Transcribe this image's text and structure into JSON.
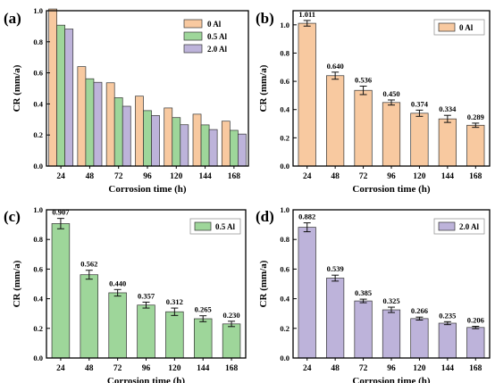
{
  "chart_data": [
    {
      "panel": "(a)",
      "type": "bar",
      "categories": [
        "24",
        "48",
        "72",
        "96",
        "120",
        "144",
        "168"
      ],
      "series": [
        {
          "name": "0 Al",
          "color": "#f8c9a0",
          "values": [
            1.011,
            0.64,
            0.536,
            0.45,
            0.374,
            0.334,
            0.289
          ]
        },
        {
          "name": "0.5 Al",
          "color": "#9ed69a",
          "values": [
            0.907,
            0.562,
            0.44,
            0.357,
            0.312,
            0.265,
            0.23
          ]
        },
        {
          "name": "2.0 Al",
          "color": "#bdb3da",
          "values": [
            0.882,
            0.539,
            0.385,
            0.325,
            0.266,
            0.235,
            0.206
          ]
        }
      ],
      "xlabel": "Corrosion time (h)",
      "ylabel": "CR (mm/a)",
      "ylim": [
        0,
        1.0
      ],
      "yticks": [
        "0.0",
        "0.2",
        "0.4",
        "0.6",
        "0.8",
        "1.0"
      ],
      "legend": "top-right"
    },
    {
      "panel": "(b)",
      "type": "bar",
      "categories": [
        "24",
        "48",
        "72",
        "96",
        "120",
        "144",
        "168"
      ],
      "series": [
        {
          "name": "0 Al",
          "color": "#f8c9a0",
          "values": [
            1.011,
            0.64,
            0.536,
            0.45,
            0.374,
            0.334,
            0.289
          ],
          "errors": [
            0.02,
            0.025,
            0.03,
            0.018,
            0.022,
            0.025,
            0.015
          ],
          "value_labels": [
            "1.011",
            "0.640",
            "0.536",
            "0.450",
            "0.374",
            "0.334",
            "0.289"
          ]
        }
      ],
      "xlabel": "Corrosion time (h)",
      "ylabel": "CR (mm/a)",
      "ylim": [
        0,
        1.1
      ],
      "yticks": [
        "0.0",
        "0.2",
        "0.4",
        "0.6",
        "0.8",
        "1.0"
      ],
      "legend": "top-right"
    },
    {
      "panel": "(c)",
      "type": "bar",
      "categories": [
        "24",
        "48",
        "72",
        "96",
        "120",
        "144",
        "168"
      ],
      "series": [
        {
          "name": "0.5 Al",
          "color": "#9ed69a",
          "values": [
            0.907,
            0.562,
            0.44,
            0.357,
            0.312,
            0.265,
            0.23
          ],
          "errors": [
            0.035,
            0.03,
            0.022,
            0.02,
            0.025,
            0.02,
            0.018
          ],
          "value_labels": [
            "0.907",
            "0.562",
            "0.440",
            "0.357",
            "0.312",
            "0.265",
            "0.230"
          ]
        }
      ],
      "xlabel": "Corrosion time (h)",
      "ylabel": "CR (mm/a)",
      "ylim": [
        0,
        1.0
      ],
      "yticks": [
        "0.0",
        "0.2",
        "0.4",
        "0.6",
        "0.8",
        "1.0"
      ],
      "legend": "top-right"
    },
    {
      "panel": "(d)",
      "type": "bar",
      "categories": [
        "24",
        "48",
        "72",
        "96",
        "120",
        "144",
        "168"
      ],
      "series": [
        {
          "name": "2.0 Al",
          "color": "#bdb3da",
          "values": [
            0.882,
            0.539,
            0.385,
            0.325,
            0.266,
            0.235,
            0.206
          ],
          "errors": [
            0.03,
            0.02,
            0.012,
            0.018,
            0.01,
            0.01,
            0.008
          ],
          "value_labels": [
            "0.882",
            "0.539",
            "0.385",
            "0.325",
            "0.266",
            "0.235",
            "0.206"
          ]
        }
      ],
      "xlabel": "Corrosion time (h)",
      "ylabel": "CR (mm/a)",
      "ylim": [
        0,
        1.0
      ],
      "yticks": [
        "0.0",
        "0.2",
        "0.4",
        "0.6",
        "0.8",
        "1.0"
      ],
      "legend": "top-right"
    }
  ]
}
